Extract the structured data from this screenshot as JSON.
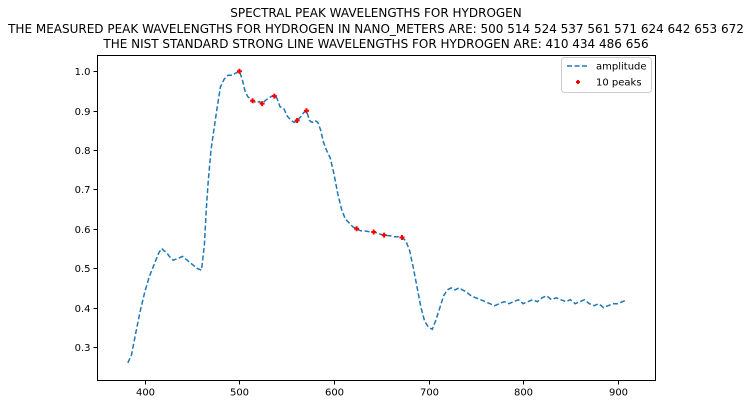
{
  "chart_data": {
    "type": "line",
    "title_lines": [
      "SPECTRAL PEAK WAVELENGTHS FOR HYDROGEN",
      "THE MEASURED PEAK WAVELENGTHS FOR HYDROGEN IN NANO_METERS ARE: 500 514 524 537 561 571 624 642 653 672",
      "THE NIST STANDARD STRONG LINE WAVELENGTHS FOR HYDROGEN ARE: 410 434 486 656"
    ],
    "xlabel": "",
    "ylabel": "",
    "xlim": [
      350,
      940
    ],
    "ylim": [
      0.215,
      1.04
    ],
    "x_ticks": [
      400,
      500,
      600,
      700,
      800,
      900
    ],
    "y_ticks": [
      0.3,
      0.4,
      0.5,
      0.6,
      0.7,
      0.8,
      0.9,
      1.0
    ],
    "grid": false,
    "legend_position": "upper right",
    "series": [
      {
        "name": "amplitude",
        "style": "dashed",
        "color": "#1f77b4",
        "x": [
          382,
          386,
          390,
          395,
          400,
          405,
          410,
          415,
          418,
          420,
          423,
          426,
          430,
          435,
          440,
          445,
          450,
          455,
          460,
          463,
          465,
          467,
          470,
          473,
          476,
          480,
          484,
          488,
          492,
          496,
          500,
          503,
          506,
          509,
          512,
          514,
          518,
          521,
          524,
          527,
          530,
          533,
          537,
          540,
          543,
          547,
          551,
          555,
          558,
          561,
          565,
          568,
          571,
          574,
          577,
          580,
          583,
          586,
          589,
          592,
          596,
          600,
          604,
          608,
          612,
          616,
          620,
          624,
          628,
          632,
          637,
          642,
          647,
          651,
          653,
          656,
          660,
          664,
          668,
          672,
          676,
          680,
          684,
          688,
          692,
          696,
          700,
          704,
          708,
          712,
          716,
          720,
          724,
          728,
          732,
          736,
          740,
          745,
          750,
          755,
          760,
          765,
          770,
          775,
          780,
          785,
          790,
          795,
          800,
          805,
          810,
          815,
          820,
          825,
          830,
          835,
          840,
          845,
          850,
          855,
          860,
          865,
          870,
          875,
          880,
          885,
          890,
          895,
          900,
          905,
          910
        ],
        "y": [
          0.26,
          0.28,
          0.33,
          0.39,
          0.44,
          0.48,
          0.51,
          0.54,
          0.55,
          0.545,
          0.54,
          0.53,
          0.52,
          0.525,
          0.53,
          0.52,
          0.51,
          0.5,
          0.495,
          0.56,
          0.65,
          0.72,
          0.8,
          0.85,
          0.9,
          0.96,
          0.98,
          0.99,
          0.99,
          0.995,
          1.0,
          0.98,
          0.95,
          0.935,
          0.93,
          0.925,
          0.92,
          0.923,
          0.918,
          0.925,
          0.93,
          0.935,
          0.94,
          0.93,
          0.91,
          0.905,
          0.885,
          0.875,
          0.87,
          0.875,
          0.885,
          0.895,
          0.9,
          0.875,
          0.87,
          0.875,
          0.87,
          0.85,
          0.82,
          0.8,
          0.78,
          0.74,
          0.69,
          0.65,
          0.625,
          0.615,
          0.605,
          0.6,
          0.595,
          0.595,
          0.593,
          0.592,
          0.588,
          0.585,
          0.584,
          0.583,
          0.582,
          0.58,
          0.58,
          0.578,
          0.57,
          0.545,
          0.5,
          0.45,
          0.4,
          0.365,
          0.35,
          0.345,
          0.37,
          0.4,
          0.43,
          0.445,
          0.45,
          0.445,
          0.45,
          0.445,
          0.44,
          0.43,
          0.425,
          0.42,
          0.415,
          0.41,
          0.405,
          0.41,
          0.415,
          0.41,
          0.415,
          0.42,
          0.41,
          0.415,
          0.42,
          0.415,
          0.425,
          0.43,
          0.42,
          0.425,
          0.42,
          0.415,
          0.42,
          0.41,
          0.415,
          0.42,
          0.41,
          0.405,
          0.41,
          0.4,
          0.405,
          0.41,
          0.41,
          0.415,
          0.42
        ]
      },
      {
        "name": "10 peaks",
        "style": "markers",
        "color": "#ff0000",
        "x": [
          500,
          514,
          524,
          537,
          561,
          571,
          624,
          642,
          653,
          672
        ],
        "y": [
          1.0,
          0.925,
          0.918,
          0.937,
          0.875,
          0.9,
          0.6,
          0.592,
          0.584,
          0.578
        ]
      }
    ]
  }
}
